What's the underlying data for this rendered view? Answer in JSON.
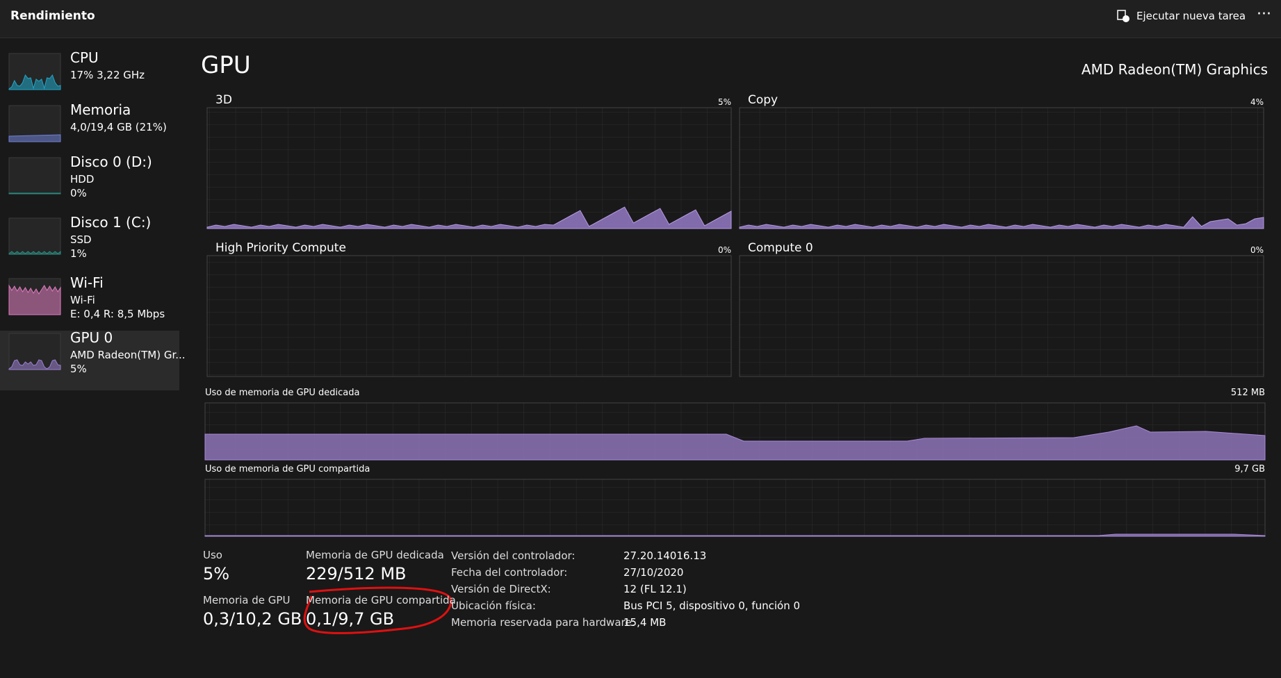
{
  "header": {
    "title": "Rendimiento",
    "action": "Ejecutar nueva tarea"
  },
  "sidebar": [
    {
      "name": "CPU",
      "lines": [
        "17% 3,22 GHz"
      ]
    },
    {
      "name": "Memoria",
      "lines": [
        "4,0/19,4 GB (21%)"
      ]
    },
    {
      "name": "Disco 0 (D:)",
      "lines": [
        "HDD",
        "0%"
      ]
    },
    {
      "name": "Disco 1 (C:)",
      "lines": [
        "SSD",
        "1%"
      ]
    },
    {
      "name": "Wi-Fi",
      "lines": [
        "Wi-Fi",
        "E: 0,4 R: 8,5 Mbps"
      ]
    },
    {
      "name": "GPU 0",
      "lines": [
        "AMD Radeon(TM) Gr...",
        "5%"
      ]
    }
  ],
  "main": {
    "title": "GPU",
    "device": "AMD Radeon(TM) Graphics",
    "engines": [
      {
        "name": "3D",
        "max": "5%"
      },
      {
        "name": "Copy",
        "max": "4%"
      },
      {
        "name": "High Priority Compute",
        "max": "0%"
      },
      {
        "name": "Compute 0",
        "max": "0%"
      }
    ],
    "memory_graphs": [
      {
        "label": "Uso de memoria de GPU dedicada",
        "max": "512 MB"
      },
      {
        "label": "Uso de memoria de GPU compartida",
        "max": "9,7 GB"
      }
    ],
    "stats": [
      {
        "label": "Uso",
        "value": "5%"
      },
      {
        "label": "Memoria de GPU dedicada",
        "value": "229/512 MB"
      },
      {
        "label": "Memoria de GPU",
        "value": "0,3/10,2 GB"
      },
      {
        "label": "Memoria de GPU compartida",
        "value": "0,1/9,7 GB"
      }
    ],
    "details": [
      [
        "Versión del controlador:",
        "27.20.14016.13"
      ],
      [
        "Fecha del controlador:",
        "27/10/2020"
      ],
      [
        "Versión de DirectX:",
        "12 (FL 12.1)"
      ],
      [
        "Ubicación física:",
        "Bus PCI 5, dispositivo 0, función 0"
      ],
      [
        "Memoria reservada para hardware:",
        "15,4 MB"
      ]
    ]
  }
}
